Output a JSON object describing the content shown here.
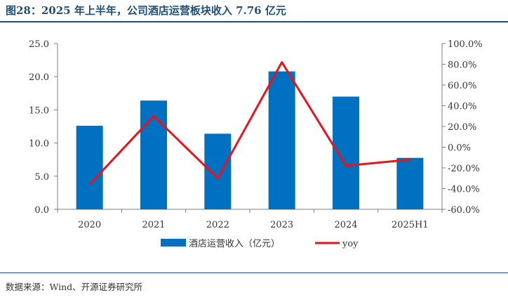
{
  "page": {
    "title": "图28：2025 年上半年，公司酒店运营板块收入 7.76 亿元",
    "source": "数据来源：Wind、开源证券研究所"
  },
  "colors": {
    "bar": "#0070c0",
    "line": "#e8141c",
    "title": "#1f4e79"
  },
  "chart_data": {
    "type": "bar",
    "categories": [
      "2020",
      "2021",
      "2022",
      "2023",
      "2024",
      "2025H1"
    ],
    "series": [
      {
        "name": "酒店运营收入（亿元）",
        "type": "bar",
        "axis": "left",
        "values": [
          12.6,
          16.4,
          11.4,
          20.8,
          17.0,
          7.76
        ]
      },
      {
        "name": "yoy",
        "type": "line",
        "axis": "right",
        "values": [
          -36.0,
          30.0,
          -30.0,
          82.0,
          -18.0,
          -12.0
        ]
      }
    ],
    "y_left": {
      "min": 0,
      "max": 25,
      "ticks": [
        "0.0",
        "5.0",
        "10.0",
        "15.0",
        "20.0",
        "25.0"
      ]
    },
    "y_right": {
      "min": -60,
      "max": 100,
      "ticks": [
        "-60.0%",
        "-40.0%",
        "-20.0%",
        "0.0%",
        "20.0%",
        "40.0%",
        "60.0%",
        "80.0%",
        "100.0%"
      ]
    },
    "legend_position": "bottom",
    "grid": false
  }
}
